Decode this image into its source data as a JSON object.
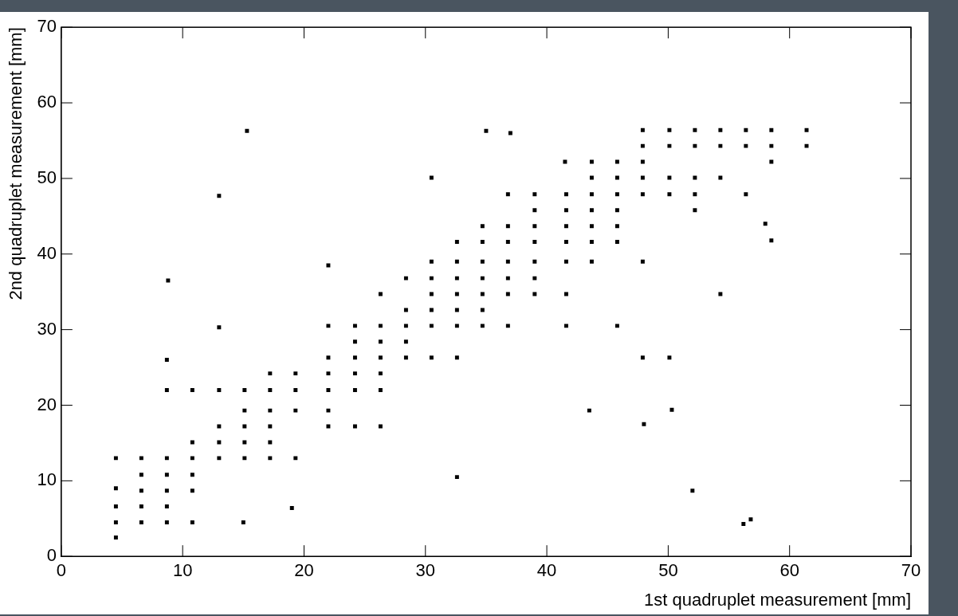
{
  "chart_data": {
    "type": "scatter",
    "x_label": "1st quadruplet measurement [mm]",
    "y_label": "2nd quadruplet measurement [mm]",
    "color": "#000000",
    "marker": "square",
    "grid": false,
    "xlim": [
      0,
      70
    ],
    "ylim": [
      0,
      70
    ],
    "xticks": [
      0,
      10,
      20,
      30,
      40,
      50,
      60,
      70
    ],
    "yticks": [
      0,
      10,
      20,
      30,
      40,
      50,
      60,
      70
    ],
    "x": [
      4.5,
      4.5,
      4.5,
      4.5,
      4.5,
      6.6,
      6.6,
      6.6,
      6.6,
      6.6,
      8.7,
      8.7,
      8.7,
      8.7,
      8.7,
      8.7,
      8.7,
      10.8,
      10.8,
      10.8,
      10.8,
      10.8,
      10.8,
      13,
      13,
      13,
      13,
      13,
      15.1,
      15.1,
      15.1,
      15.1,
      15.1,
      17.2,
      17.2,
      17.2,
      17.2,
      17.2,
      17.2,
      19.3,
      19.3,
      19.3,
      19.3,
      22,
      22,
      22,
      22,
      22,
      22,
      24.2,
      24.2,
      24.2,
      24.2,
      24.2,
      24.2,
      26.3,
      26.3,
      26.3,
      26.3,
      26.3,
      26.3,
      26.3,
      28.4,
      28.4,
      28.4,
      28.4,
      28.4,
      30.5,
      30.5,
      30.5,
      30.5,
      30.5,
      30.5,
      30.5,
      32.6,
      32.6,
      32.6,
      32.6,
      32.6,
      32.6,
      32.6,
      34.7,
      34.7,
      34.7,
      34.7,
      34.7,
      34.7,
      34.7,
      36.8,
      36.8,
      36.8,
      36.8,
      36.8,
      36.8,
      36.8,
      39,
      39,
      39,
      39,
      39,
      39,
      39,
      41.6,
      41.6,
      41.6,
      41.6,
      41.6,
      41.6,
      41.6,
      43.7,
      43.7,
      43.7,
      43.7,
      43.7,
      43.7,
      43.7,
      45.8,
      45.8,
      45.8,
      45.8,
      45.8,
      45.8,
      45.8,
      47.9,
      47.9,
      47.9,
      47.9,
      47.9,
      47.9,
      47.9,
      50.1,
      50.1,
      50.1,
      50.1,
      50.1,
      52.2,
      52.2,
      52.2,
      52.2,
      52.2,
      54.3,
      54.3,
      54.3,
      54.3,
      56.4,
      56.4,
      56.4,
      58.5,
      58.5,
      58.5,
      61.4,
      61.4,
      15.3,
      13,
      8.8,
      32.6,
      43.5,
      50.3,
      52,
      56.2,
      56.8,
      19,
      22,
      15,
      58,
      58.5,
      35,
      37,
      41.5,
      48
    ],
    "values": [
      2.5,
      4.5,
      6.6,
      9,
      13,
      4.5,
      6.6,
      8.7,
      10.8,
      13,
      4.5,
      6.6,
      8.7,
      10.8,
      13,
      22,
      26,
      4.5,
      8.7,
      10.8,
      13,
      15.1,
      22,
      13,
      15.1,
      17.2,
      22,
      30.3,
      13,
      15.1,
      17.2,
      19.3,
      22,
      13,
      15.1,
      17.2,
      19.3,
      22,
      24.2,
      13,
      19.3,
      22,
      24.2,
      17.2,
      19.3,
      22,
      24.2,
      26.3,
      30.5,
      17.2,
      22,
      24.2,
      26.3,
      28.4,
      30.5,
      17.2,
      22,
      24.2,
      26.3,
      28.4,
      30.5,
      34.7,
      26.3,
      28.4,
      30.5,
      32.6,
      36.8,
      26.3,
      30.5,
      32.6,
      34.7,
      36.8,
      39,
      50.1,
      26.3,
      30.5,
      32.6,
      34.7,
      36.8,
      39,
      41.6,
      30.5,
      32.6,
      34.7,
      36.8,
      39,
      41.6,
      43.7,
      30.5,
      34.7,
      36.8,
      39,
      41.6,
      43.7,
      47.9,
      34.7,
      36.8,
      39,
      41.6,
      43.7,
      45.8,
      47.9,
      30.5,
      34.7,
      39,
      41.6,
      43.7,
      45.8,
      47.9,
      39,
      41.6,
      43.7,
      45.8,
      47.9,
      50.1,
      52.2,
      30.5,
      41.6,
      43.7,
      45.8,
      47.9,
      50.1,
      52.2,
      26.3,
      39,
      47.9,
      50.1,
      52.2,
      54.3,
      56.4,
      26.3,
      47.9,
      50.1,
      54.3,
      56.4,
      45.8,
      47.9,
      50.1,
      54.3,
      56.4,
      34.7,
      50.1,
      54.3,
      56.4,
      47.9,
      54.3,
      56.4,
      52.2,
      54.3,
      56.4,
      54.3,
      56.4,
      56.3,
      47.7,
      36.5,
      10.5,
      19.3,
      19.4,
      8.7,
      4.3,
      4.9,
      6.4,
      38.5,
      4.5,
      44,
      41.8,
      56.3,
      56,
      52.2,
      17.5
    ]
  }
}
